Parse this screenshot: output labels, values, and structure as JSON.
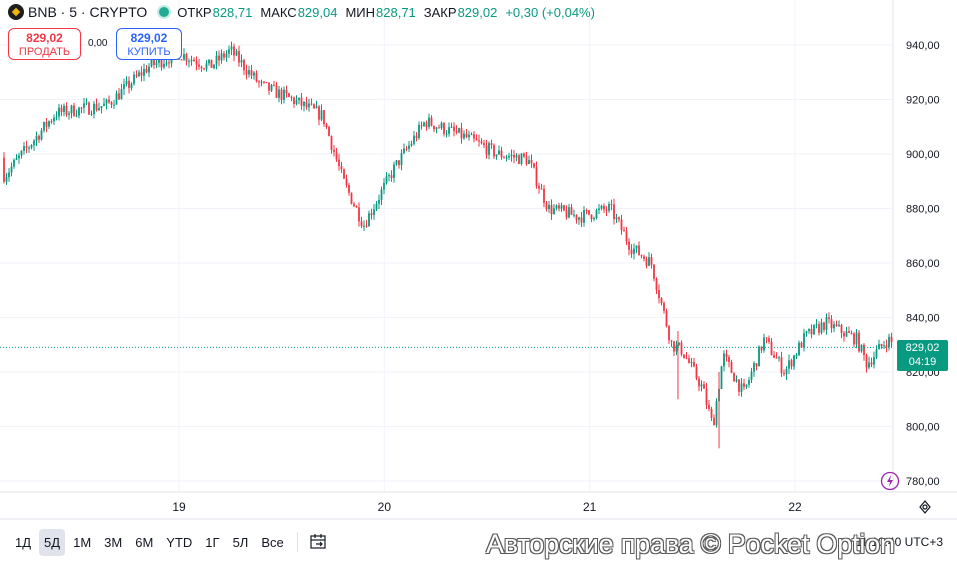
{
  "header": {
    "symbol": "BNB · 5 · CRYPTO",
    "open_label": "ОТКР",
    "open_value": "828,71",
    "high_label": "МАКС",
    "high_value": "829,04",
    "low_label": "МИН",
    "low_value": "828,71",
    "close_label": "ЗАКР",
    "close_value": "829,02",
    "change": "+0,30 (+0,04%)"
  },
  "trade": {
    "sell_price": "829,02",
    "sell_label": "ПРОДАТЬ",
    "spread": "0,00",
    "buy_price": "829,02",
    "buy_label": "КУПИТЬ"
  },
  "price_tag": {
    "price": "829,02",
    "countdown": "04:19"
  },
  "timeframes": [
    "1Д",
    "5Д",
    "1М",
    "3М",
    "6М",
    "YTD",
    "1Г",
    "5Л",
    "Все"
  ],
  "active_timeframe": "5Д",
  "clock": "11:10:40 UTC+3",
  "watermark": "Авторские права © Pocket Option",
  "colors": {
    "up": "#089981",
    "down": "#f23645",
    "accent": "#2962ff"
  },
  "chart_data": {
    "type": "candlestick",
    "interval": "5 min",
    "x": [
      18.0,
      18.15,
      18.4,
      18.65,
      18.85,
      19.0,
      19.15,
      19.25,
      19.4,
      19.55,
      19.7,
      19.8,
      19.9,
      20.05,
      20.2,
      20.4,
      20.55,
      20.7,
      20.8,
      20.95,
      21.1,
      21.2,
      21.3,
      21.4,
      21.45,
      21.55,
      21.6,
      21.65,
      21.75,
      21.85,
      21.95,
      22.05,
      22.15,
      22.3,
      22.35,
      22.45,
      22.5
    ],
    "y": [
      912,
      892,
      915,
      918,
      932,
      937,
      932,
      938,
      925,
      920,
      914,
      890,
      874,
      895,
      912,
      906,
      900,
      898,
      880,
      877,
      880,
      866,
      860,
      830,
      828,
      814,
      800,
      826,
      812,
      832,
      820,
      833,
      838,
      832,
      823,
      832,
      829
    ],
    "xticks": [
      "19",
      "20",
      "21",
      "22"
    ],
    "yticks": [
      "780,00",
      "800,00",
      "820,00",
      "840,00",
      "860,00",
      "880,00",
      "900,00",
      "920,00",
      "940,00"
    ],
    "ylim": [
      775,
      950
    ],
    "last_price": 829.02
  }
}
